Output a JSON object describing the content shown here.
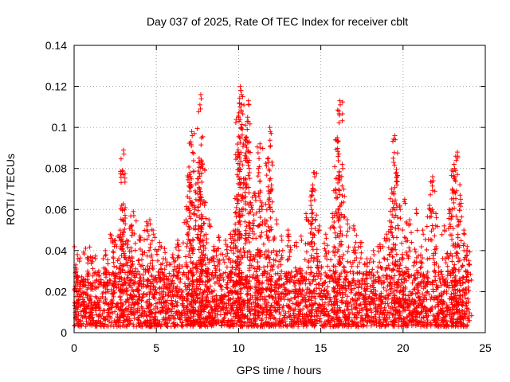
{
  "chart_data": {
    "type": "scatter",
    "title": "Day 037 of 2025, Rate Of TEC Index for receiver cblt",
    "xlabel": "GPS time / hours",
    "ylabel": "ROTI / TECUs",
    "xlim": [
      0,
      25
    ],
    "ylim": [
      0,
      0.14
    ],
    "xticks": [
      0,
      5,
      10,
      15,
      20,
      25
    ],
    "xtick_labels": [
      "0",
      "5",
      "10",
      "15",
      "20",
      "25"
    ],
    "yticks": [
      0,
      0.02,
      0.04,
      0.06,
      0.08,
      0.1,
      0.12,
      0.14
    ],
    "ytick_labels": [
      "0",
      "0.02",
      "0.04",
      "0.06",
      "0.08",
      "0.1",
      "0.12",
      "0.14"
    ],
    "grid": true,
    "marker": "+",
    "color": "#ff0000",
    "series": [
      {
        "name": "ROTI",
        "data_range": {
          "x": [
            0,
            24
          ],
          "y_baseline": [
            0.003,
            0.03
          ]
        },
        "points": [
          [
            0.1,
            0.033
          ],
          [
            0.2,
            0.038
          ],
          [
            0.6,
            0.025
          ],
          [
            0.8,
            0.036
          ],
          [
            1.0,
            0.037
          ],
          [
            1.5,
            0.03
          ],
          [
            1.9,
            0.04
          ],
          [
            2.2,
            0.048
          ],
          [
            2.5,
            0.045
          ],
          [
            2.8,
            0.05
          ],
          [
            2.9,
            0.062
          ],
          [
            2.95,
            0.079
          ],
          [
            3.0,
            0.089
          ],
          [
            3.2,
            0.045
          ],
          [
            3.5,
            0.052
          ],
          [
            3.6,
            0.059
          ],
          [
            4.0,
            0.047
          ],
          [
            4.4,
            0.054
          ],
          [
            4.6,
            0.055
          ],
          [
            4.8,
            0.05
          ],
          [
            5.2,
            0.044
          ],
          [
            5.5,
            0.041
          ],
          [
            6.0,
            0.038
          ],
          [
            6.3,
            0.045
          ],
          [
            6.8,
            0.055
          ],
          [
            7.0,
            0.071
          ],
          [
            7.05,
            0.078
          ],
          [
            7.1,
            0.093
          ],
          [
            7.15,
            0.098
          ],
          [
            7.3,
            0.062
          ],
          [
            7.5,
            0.075
          ],
          [
            7.6,
            0.085
          ],
          [
            7.65,
            0.111
          ],
          [
            7.7,
            0.116
          ],
          [
            7.8,
            0.082
          ],
          [
            7.9,
            0.064
          ],
          [
            8.2,
            0.055
          ],
          [
            8.5,
            0.042
          ],
          [
            8.8,
            0.047
          ],
          [
            9.2,
            0.045
          ],
          [
            9.5,
            0.048
          ],
          [
            9.8,
            0.05
          ],
          [
            9.9,
            0.065
          ],
          [
            9.95,
            0.088
          ],
          [
            10.0,
            0.105
          ],
          [
            10.05,
            0.112
          ],
          [
            10.1,
            0.12
          ],
          [
            10.15,
            0.118
          ],
          [
            10.3,
            0.075
          ],
          [
            10.5,
            0.095
          ],
          [
            10.55,
            0.105
          ],
          [
            10.6,
            0.113
          ],
          [
            10.8,
            0.062
          ],
          [
            11.0,
            0.068
          ],
          [
            11.2,
            0.08
          ],
          [
            11.3,
            0.092
          ],
          [
            11.4,
            0.062
          ],
          [
            11.6,
            0.055
          ],
          [
            11.8,
            0.085
          ],
          [
            11.9,
            0.1
          ],
          [
            12.0,
            0.072
          ],
          [
            12.3,
            0.055
          ],
          [
            12.6,
            0.047
          ],
          [
            13.0,
            0.05
          ],
          [
            13.5,
            0.044
          ],
          [
            13.8,
            0.047
          ],
          [
            14.1,
            0.058
          ],
          [
            14.4,
            0.062
          ],
          [
            14.5,
            0.072
          ],
          [
            14.6,
            0.078
          ],
          [
            14.9,
            0.052
          ],
          [
            15.3,
            0.048
          ],
          [
            15.7,
            0.058
          ],
          [
            15.9,
            0.07
          ],
          [
            16.0,
            0.095
          ],
          [
            16.1,
            0.108
          ],
          [
            16.15,
            0.113
          ],
          [
            16.3,
            0.082
          ],
          [
            16.6,
            0.055
          ],
          [
            17.0,
            0.052
          ],
          [
            17.4,
            0.044
          ],
          [
            17.8,
            0.036
          ],
          [
            18.2,
            0.04
          ],
          [
            18.6,
            0.043
          ],
          [
            19.0,
            0.048
          ],
          [
            19.3,
            0.07
          ],
          [
            19.4,
            0.085
          ],
          [
            19.5,
            0.096
          ],
          [
            19.6,
            0.078
          ],
          [
            19.8,
            0.062
          ],
          [
            20.1,
            0.065
          ],
          [
            20.4,
            0.055
          ],
          [
            20.8,
            0.06
          ],
          [
            21.2,
            0.05
          ],
          [
            21.6,
            0.062
          ],
          [
            21.8,
            0.076
          ],
          [
            22.0,
            0.058
          ],
          [
            22.5,
            0.052
          ],
          [
            22.8,
            0.06
          ],
          [
            23.0,
            0.07
          ],
          [
            23.1,
            0.082
          ],
          [
            23.2,
            0.086
          ],
          [
            23.3,
            0.088
          ],
          [
            23.5,
            0.065
          ],
          [
            23.7,
            0.05
          ],
          [
            23.9,
            0.042
          ],
          [
            24.0,
            0.035
          ]
        ]
      }
    ]
  }
}
